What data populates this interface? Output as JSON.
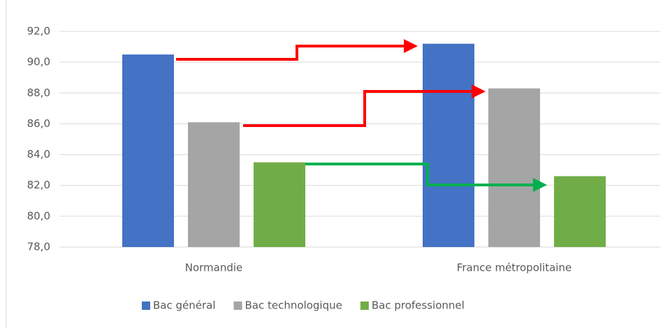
{
  "chart_data": {
    "type": "bar",
    "categories": [
      "Normandie",
      "France métropolitaine"
    ],
    "series": [
      {
        "name": "Bac général",
        "color": "#4472c4",
        "values": [
          90.5,
          91.2
        ]
      },
      {
        "name": "Bac technologique",
        "color": "#a5a5a5",
        "values": [
          86.1,
          88.3
        ]
      },
      {
        "name": "Bac professionnel",
        "color": "#70ad47",
        "values": [
          83.5,
          82.6
        ]
      }
    ],
    "ylim": [
      78,
      92
    ],
    "yticks": [
      {
        "value": 78,
        "label": "78,0"
      },
      {
        "value": 80,
        "label": "80,0"
      },
      {
        "value": 82,
        "label": "82,0"
      },
      {
        "value": 84,
        "label": "84,0"
      },
      {
        "value": 86,
        "label": "86,0"
      },
      {
        "value": 88,
        "label": "88,0"
      },
      {
        "value": 90,
        "label": "90,0"
      },
      {
        "value": 92,
        "label": "92,0"
      }
    ],
    "grid": true,
    "legend": "bottom"
  }
}
